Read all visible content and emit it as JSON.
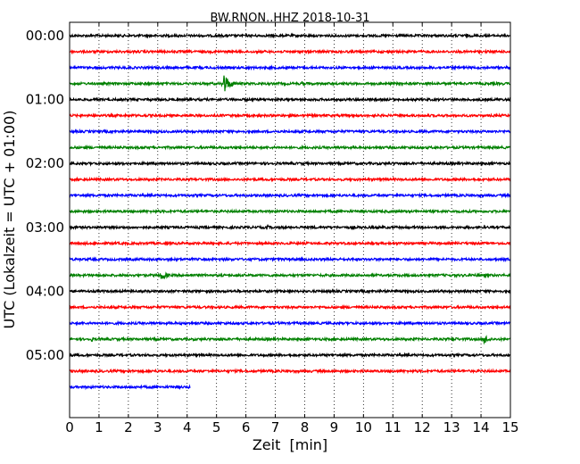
{
  "chart_data": {
    "type": "line",
    "subtype": "dayplot-seismogram",
    "title": "BW.RNON..HHZ 2018-10-31",
    "xlabel": "Zeit  [min]",
    "ylabel": "UTC (Lokalzeit = UTC + 01:00)",
    "xlim": [
      0,
      15
    ],
    "x_ticks": [
      "0",
      "1",
      "2",
      "3",
      "4",
      "5",
      "6",
      "7",
      "8",
      "9",
      "10",
      "11",
      "12",
      "13",
      "14",
      "15"
    ],
    "y_ticks": [
      "00:00",
      "01:00",
      "02:00",
      "03:00",
      "04:00",
      "05:00"
    ],
    "grid": "vertical dotted lines at each minute",
    "colors": [
      "#000000",
      "#ff0000",
      "#0000ff",
      "#008000"
    ],
    "trace_interval_min": 15,
    "traces": [
      {
        "start": "00:00",
        "color_index": 0,
        "end_min": 15,
        "events": []
      },
      {
        "start": "00:15",
        "color_index": 1,
        "end_min": 15,
        "events": []
      },
      {
        "start": "00:30",
        "color_index": 2,
        "end_min": 15,
        "events": []
      },
      {
        "start": "00:45",
        "color_index": 3,
        "end_min": 15,
        "events": [
          {
            "t": 5.25,
            "amp": 12
          },
          {
            "t": 7.9,
            "amp": 3
          }
        ]
      },
      {
        "start": "01:00",
        "color_index": 0,
        "end_min": 15,
        "events": []
      },
      {
        "start": "01:15",
        "color_index": 1,
        "end_min": 15,
        "events": []
      },
      {
        "start": "01:30",
        "color_index": 2,
        "end_min": 15,
        "events": []
      },
      {
        "start": "01:45",
        "color_index": 3,
        "end_min": 15,
        "events": []
      },
      {
        "start": "02:00",
        "color_index": 0,
        "end_min": 15,
        "events": []
      },
      {
        "start": "02:15",
        "color_index": 1,
        "end_min": 15,
        "events": []
      },
      {
        "start": "02:30",
        "color_index": 2,
        "end_min": 15,
        "events": []
      },
      {
        "start": "02:45",
        "color_index": 3,
        "end_min": 15,
        "events": []
      },
      {
        "start": "03:00",
        "color_index": 0,
        "end_min": 15,
        "events": [
          {
            "t": 6.7,
            "amp": 3
          },
          {
            "t": 8.2,
            "amp": 3
          }
        ]
      },
      {
        "start": "03:15",
        "color_index": 1,
        "end_min": 15,
        "events": []
      },
      {
        "start": "03:30",
        "color_index": 2,
        "end_min": 15,
        "events": []
      },
      {
        "start": "03:45",
        "color_index": 3,
        "end_min": 15,
        "events": [
          {
            "t": 3.1,
            "amp": 7
          },
          {
            "t": 13.6,
            "amp": 3
          }
        ]
      },
      {
        "start": "04:00",
        "color_index": 0,
        "end_min": 15,
        "events": []
      },
      {
        "start": "04:15",
        "color_index": 1,
        "end_min": 15,
        "events": []
      },
      {
        "start": "04:30",
        "color_index": 2,
        "end_min": 15,
        "events": []
      },
      {
        "start": "04:45",
        "color_index": 3,
        "end_min": 15,
        "events": [
          {
            "t": 0.7,
            "amp": 3
          },
          {
            "t": 13.0,
            "amp": 4
          },
          {
            "t": 14.1,
            "amp": 6
          }
        ]
      },
      {
        "start": "05:00",
        "color_index": 0,
        "end_min": 15,
        "events": []
      },
      {
        "start": "05:15",
        "color_index": 1,
        "end_min": 15,
        "events": []
      },
      {
        "start": "05:30",
        "color_index": 2,
        "end_min": 4.1,
        "events": []
      }
    ]
  }
}
